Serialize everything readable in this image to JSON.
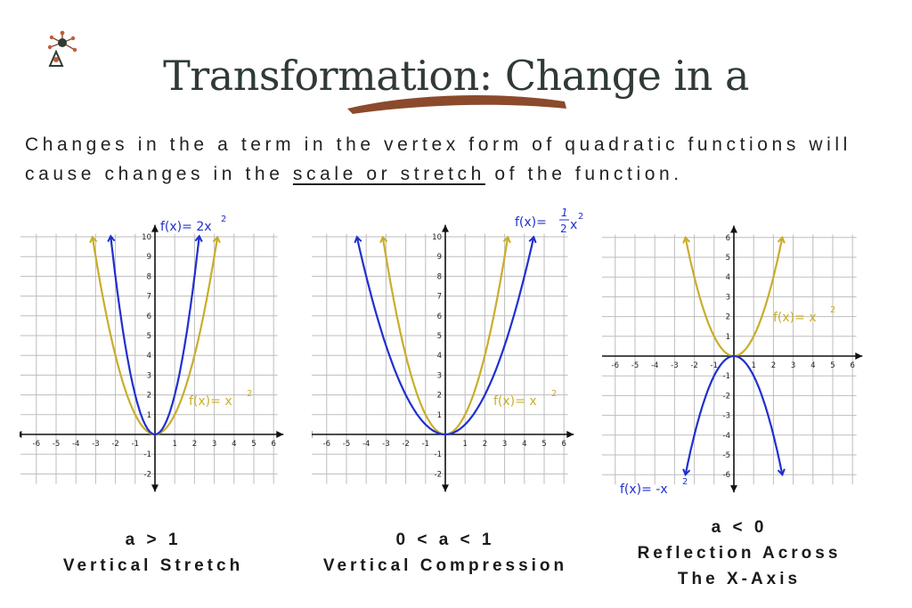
{
  "title": "Transformation: Change in a",
  "intro": {
    "before": "Changes in the a term in the vertex form of quadratic functions will cause changes in the ",
    "highlight": "scale or stretch",
    "after": " of the function."
  },
  "colors": {
    "parent": "#c9ad2a",
    "transformed": "#1f2fd0",
    "brush": "#8b4a2b",
    "title": "#2f3a36"
  },
  "panels": [
    {
      "caption_line1": "a > 1",
      "caption_line2": "Vertical Stretch",
      "caption_line3": "",
      "transformed_label": "f(x)= 2x",
      "transformed_exponent": "2",
      "parent_label": "f(x)= x",
      "parent_exponent": "2"
    },
    {
      "caption_line1": "0 < a < 1",
      "caption_line2": "Vertical Compression",
      "caption_line3": "",
      "transformed_label": "f(x)=",
      "transformed_frac_num": "1",
      "transformed_frac_den": "2",
      "transformed_var": "x",
      "transformed_exponent": "2",
      "parent_label": "f(x)= x",
      "parent_exponent": "2"
    },
    {
      "caption_line1": "a < 0",
      "caption_line2": "Reflection Across",
      "caption_line3": "The X-Axis",
      "transformed_label": "f(x)= -x",
      "transformed_exponent": "2",
      "parent_label": "f(x)= x",
      "parent_exponent": "2"
    }
  ],
  "chart_data": [
    {
      "type": "line",
      "x_ticks": [
        "-6",
        "-5",
        "-4",
        "-3",
        "-2",
        "-1",
        "1",
        "2",
        "3",
        "4",
        "5",
        "6"
      ],
      "y_ticks": [
        "-2",
        "-1",
        "1",
        "2",
        "3",
        "4",
        "5",
        "6",
        "7",
        "8",
        "9",
        "10"
      ],
      "xlim": [
        -6,
        6
      ],
      "ylim": [
        -2,
        10
      ],
      "grid": true,
      "series": [
        {
          "name": "f(x)= x^2",
          "a": 1,
          "x_range": [
            -3.16,
            3.16
          ]
        },
        {
          "name": "f(x)= 2x^2",
          "a": 2,
          "x_range": [
            -2.24,
            2.24
          ]
        }
      ]
    },
    {
      "type": "line",
      "x_ticks": [
        "-6",
        "-5",
        "-4",
        "-3",
        "-2",
        "-1",
        "1",
        "2",
        "3",
        "4",
        "5",
        "6"
      ],
      "y_ticks": [
        "-2",
        "-1",
        "1",
        "2",
        "3",
        "4",
        "5",
        "6",
        "7",
        "8",
        "9",
        "10"
      ],
      "xlim": [
        -6,
        6
      ],
      "ylim": [
        -2,
        10
      ],
      "grid": true,
      "series": [
        {
          "name": "f(x)= x^2",
          "a": 1,
          "x_range": [
            -3.16,
            3.16
          ]
        },
        {
          "name": "f(x)= 1/2 x^2",
          "a": 0.5,
          "x_range": [
            -4.47,
            4.47
          ]
        }
      ]
    },
    {
      "type": "line",
      "x_ticks": [
        "-6",
        "-5",
        "-4",
        "-3",
        "-2",
        "-1",
        "1",
        "2",
        "3",
        "4",
        "5",
        "6"
      ],
      "y_ticks": [
        "-6",
        "-5",
        "-4",
        "-3",
        "-2",
        "-1",
        "1",
        "2",
        "3",
        "4",
        "5",
        "6"
      ],
      "xlim": [
        -6,
        6
      ],
      "ylim": [
        -6,
        6
      ],
      "grid": true,
      "series": [
        {
          "name": "f(x)= x^2",
          "a": 1,
          "x_range": [
            -2.45,
            2.45
          ]
        },
        {
          "name": "f(x)= -x^2",
          "a": -1,
          "x_range": [
            -2.45,
            2.45
          ]
        }
      ]
    }
  ]
}
